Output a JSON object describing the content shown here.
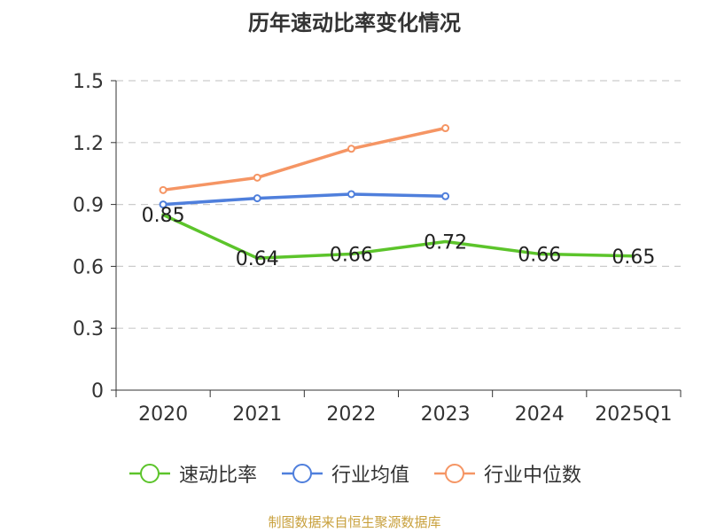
{
  "chart_data": {
    "type": "line",
    "title": "历年速动比率变化情况",
    "categories": [
      "2020",
      "2021",
      "2022",
      "2023",
      "2024",
      "2025Q1"
    ],
    "ylim": [
      0,
      1.5
    ],
    "yticks": [
      "0",
      "0.3",
      "0.6",
      "0.9",
      "1.2",
      "1.5"
    ],
    "grid": true,
    "legend_position": "bottom",
    "series": [
      {
        "name": "速动比率",
        "color": "#5cc42b",
        "values": [
          0.85,
          0.64,
          0.66,
          0.72,
          0.66,
          0.65
        ],
        "labels": [
          "0.85",
          "0.64",
          "0.66",
          "0.72",
          "0.66",
          "0.65"
        ]
      },
      {
        "name": "行业均值",
        "color": "#4f7fdc",
        "values": [
          0.9,
          0.93,
          0.95,
          0.94,
          null,
          null
        ]
      },
      {
        "name": "行业中位数",
        "color": "#f59564",
        "values": [
          0.97,
          1.03,
          1.17,
          1.27,
          null,
          null
        ]
      }
    ]
  },
  "footer": "制图数据来自恒生聚源数据库"
}
